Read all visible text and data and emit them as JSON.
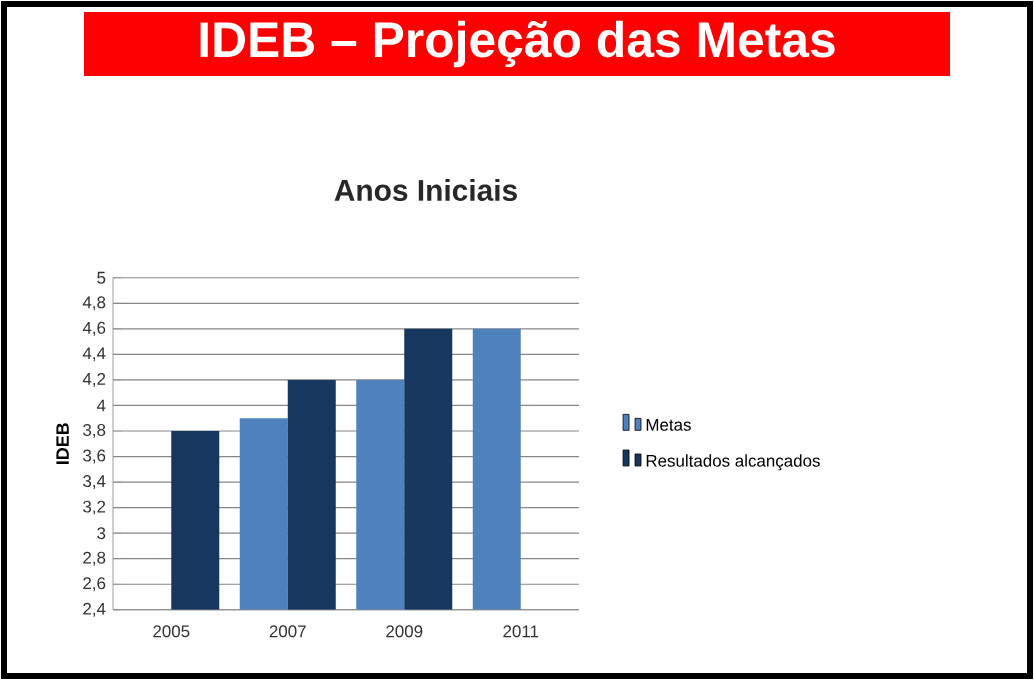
{
  "chart_data": {
    "type": "bar",
    "title": "IDEB – Projeção das Metas",
    "subtitle": "Anos Iniciais",
    "ylabel": "IDEB",
    "categories": [
      "2005",
      "2007",
      "2009",
      "2011"
    ],
    "series": [
      {
        "name": "Metas",
        "color": "#4f81bd",
        "values": [
          null,
          3.9,
          4.2,
          4.6
        ]
      },
      {
        "name": "Resultados alcançados",
        "color": "#17375e",
        "values": [
          3.8,
          4.2,
          4.6,
          null
        ]
      }
    ],
    "ylim": [
      2.4,
      5
    ],
    "yticks": [
      {
        "value": 2.4,
        "label": "2,4"
      },
      {
        "value": 2.6,
        "label": "2,6"
      },
      {
        "value": 2.8,
        "label": "2,8"
      },
      3,
      {
        "value": 3.2,
        "label": "3,2"
      },
      {
        "value": 3.4,
        "label": "3,4"
      },
      {
        "value": 3.6,
        "label": "3,6"
      },
      {
        "value": 3.8,
        "label": "3,8"
      },
      4,
      {
        "value": 4.2,
        "label": "4,2"
      },
      {
        "value": 4.4,
        "label": "4,4"
      },
      {
        "value": 4.6,
        "label": "4,6"
      },
      {
        "value": 4.8,
        "label": "4,8"
      },
      5
    ],
    "grid": "y",
    "legend": "right"
  }
}
